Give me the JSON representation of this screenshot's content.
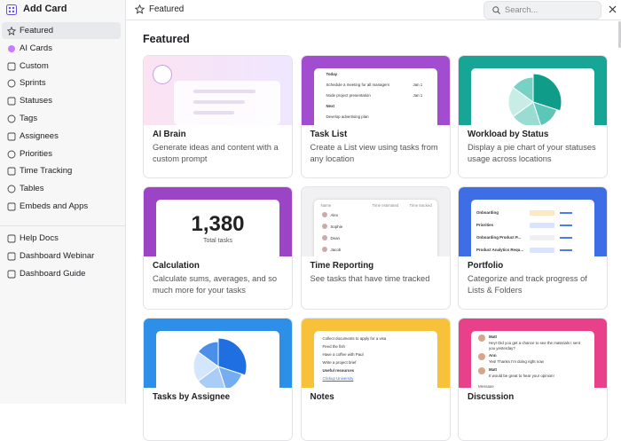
{
  "sidebar": {
    "title": "Add Card",
    "items": [
      "Featured",
      "AI Cards",
      "Custom",
      "Sprints",
      "Statuses",
      "Tags",
      "Assignees",
      "Priorities",
      "Time Tracking",
      "Tables",
      "Embeds and Apps"
    ],
    "help": [
      "Help Docs",
      "Dashboard Webinar",
      "Dashboard Guide"
    ]
  },
  "header": {
    "title": "Featured",
    "search": "Search..."
  },
  "section_title": "Featured",
  "cards": [
    {
      "title": "AI Brain",
      "description": "Generate ideas and content with a custom prompt"
    },
    {
      "title": "Task List",
      "description": "Create a List view using tasks from any location",
      "preview": [
        "Today",
        "Schedule a meeting for all managers",
        "Jan 1",
        "Node project presentation",
        "Jan 1",
        "Next",
        "Develop advertising plan"
      ]
    },
    {
      "title": "Workload by Status",
      "description": "Display a pie chart of your statuses usage across locations"
    },
    {
      "title": "Calculation",
      "description": "Calculate sums, averages, and so much more for your tasks",
      "preview": [
        "1,380",
        "Total tasks"
      ]
    },
    {
      "title": "Time Reporting",
      "description": "See tasks that have time tracked",
      "preview": [
        "Name",
        "Time estimated",
        "Time tracked",
        "Alex",
        "Sophie",
        "Dean",
        "Jacob"
      ]
    },
    {
      "title": "Portfolio",
      "description": "Categorize and track progress of Lists & Folders",
      "preview": [
        "Onboarding",
        "Priorities",
        "Onboarding Product P...",
        "Product Analytics Requ..."
      ]
    },
    {
      "title": "Tasks by Assignee"
    },
    {
      "title": "Notes",
      "preview": [
        "Collect documents to apply for a visa",
        "Feed the fish",
        "Have a coffee with Paul",
        "Write a project brief",
        "Useful resources",
        "Clickup University"
      ]
    },
    {
      "title": "Discussion",
      "preview": [
        "Matt",
        "Hey! Did you get a chance to see the materials I sent you yesterday?",
        "Ann",
        "Yes! Thanks I'm doing right now",
        "Matt",
        "It would be great to hear your opinion!",
        "Message"
      ]
    }
  ]
}
